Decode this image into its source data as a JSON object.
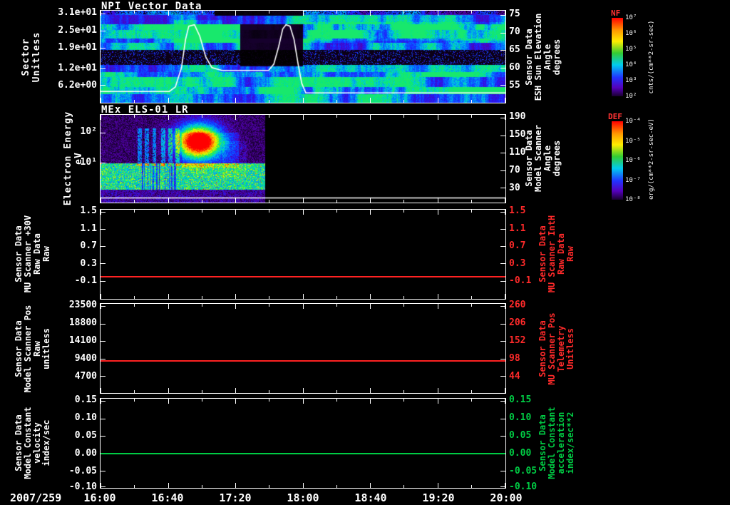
{
  "x_axis": {
    "date_label": "2007/259",
    "ticks": [
      "16:00",
      "16:40",
      "17:20",
      "18:00",
      "18:40",
      "19:20",
      "20:00"
    ]
  },
  "colorbars": [
    {
      "name": "NF",
      "name_color": "#ff3333",
      "units": "cnts/(cm**2-sr-sec)",
      "ticks": [
        "10⁷",
        "10⁶",
        "10⁵",
        "10⁴",
        "10³",
        "10²"
      ],
      "gradient": [
        "#ff0000",
        "#ff9900 16%",
        "#ffee00 30%",
        "#33cc33 45%",
        "#00ccee 60%",
        "#2233ff 76%",
        "#5500bb 89%",
        "#1a0030 100%"
      ]
    },
    {
      "name": "DEF",
      "name_color": "#ff3333",
      "units": "erg/(cm**2-sr-sec-eV)",
      "ticks": [
        "10⁻⁴",
        "10⁻⁵",
        "10⁻⁶",
        "10⁻⁷",
        "10⁻⁸"
      ],
      "gradient": [
        "#ff0000",
        "#ff9900 16%",
        "#ffee00 30%",
        "#33cc33 45%",
        "#00ccee 60%",
        "#2233ff 76%",
        "#5500bb 89%",
        "#1a0030 100%"
      ]
    }
  ],
  "chart_data": [
    {
      "type": "heatmap",
      "title": "NPI Vector Data",
      "x_range": [
        "16:00",
        "20:00"
      ],
      "left_axis": {
        "label": "Sector\nUnitless",
        "color": "#ffffff",
        "ticks": [
          {
            "label": "3.1e+01",
            "f": 0.031
          },
          {
            "label": "2.5e+01",
            "f": 0.219
          },
          {
            "label": "1.9e+01",
            "f": 0.406
          },
          {
            "label": "1.2e+01",
            "f": 0.625
          },
          {
            "label": "6.2e+00",
            "f": 0.806
          }
        ]
      },
      "right_axis": {
        "label": "Sensor Data\nESH Sun Elevation\nAngle\ndegrees",
        "color": "#ffffff",
        "ticks": [
          {
            "label": "75",
            "f": 0.046
          },
          {
            "label": "70",
            "f": 0.237
          },
          {
            "label": "65",
            "f": 0.427
          },
          {
            "label": "60",
            "f": 0.618
          },
          {
            "label": "55",
            "f": 0.809
          }
        ]
      },
      "colorbar": "NF",
      "overlay_line": {
        "name": "sun-elevation-angle",
        "units": "degrees",
        "color": "#ffffff",
        "points": [
          [
            0.0,
            53.2
          ],
          [
            0.17,
            53.2
          ],
          [
            0.185,
            54.5
          ],
          [
            0.2,
            60.0
          ],
          [
            0.21,
            68.0
          ],
          [
            0.218,
            71.8
          ],
          [
            0.232,
            72.2
          ],
          [
            0.245,
            69.0
          ],
          [
            0.26,
            63.0
          ],
          [
            0.275,
            60.0
          ],
          [
            0.3,
            59.2
          ],
          [
            0.415,
            59.2
          ],
          [
            0.428,
            61.0
          ],
          [
            0.44,
            66.0
          ],
          [
            0.45,
            71.0
          ],
          [
            0.458,
            72.2
          ],
          [
            0.468,
            71.8
          ],
          [
            0.478,
            68.0
          ],
          [
            0.488,
            61.0
          ],
          [
            0.497,
            55.5
          ],
          [
            0.507,
            52.8
          ],
          [
            1.0,
            52.8
          ]
        ]
      },
      "notes": "blue/cyan horizontally banded neutral-particle count spectrogram; black band near sector 12 with purple noise; dark dropout ~17:20-18:00 in upper sectors; white sun-elevation curve overlaid"
    },
    {
      "type": "heatmap",
      "title": "MEx ELS-01 LR",
      "left_axis": {
        "label": "Electron Energy\neV",
        "color": "#ffffff",
        "ticks": [
          {
            "label": "10²",
            "f": 0.2
          },
          {
            "label": "10¹",
            "f": 0.544
          }
        ]
      },
      "right_axis": {
        "label": "Sensor Data\nModel Scanner\nAngle\ndegrees",
        "color": "#ffffff",
        "ticks": [
          {
            "label": "190",
            "f": 0.032
          },
          {
            "label": "150",
            "f": 0.232
          },
          {
            "label": "110",
            "f": 0.432
          },
          {
            "label": "70",
            "f": 0.632
          },
          {
            "label": "30",
            "f": 0.832
          }
        ]
      },
      "colorbar": "DEF",
      "data_end_frac": 0.405,
      "overlay_line": {
        "name": "scanner-angle-trace",
        "color": "#ffffff",
        "f": 0.945
      },
      "notes": "electron energy flux spectrogram 16:00-~17:37 only; intense red burst ~17:00-17:15 at 20-100 eV with yellow/green halo; bright green low-energy band; vertical green stripes 16:15-16:45; black (no data) after ~17:37"
    },
    {
      "type": "line",
      "left_axis": {
        "label": "Sensor Data\nMU Scanner +30V\nRaw Data\nRaw",
        "color": "#ffffff",
        "ticks": [
          {
            "label": "1.5",
            "f": 0.024
          },
          {
            "label": "1.1",
            "f": 0.217
          },
          {
            "label": "0.7",
            "f": 0.41
          },
          {
            "label": "0.3",
            "f": 0.603
          },
          {
            "label": "-0.1",
            "f": 0.796
          }
        ]
      },
      "right_axis": {
        "label": "Sensor Data\nMU Scanner IntH\nRaw Data\nRaw",
        "color": "#ff2a2a",
        "ticks": [
          {
            "label": "1.5",
            "f": 0.024
          },
          {
            "label": "1.1",
            "f": 0.217
          },
          {
            "label": "0.7",
            "f": 0.41
          },
          {
            "label": "0.3",
            "f": 0.603
          },
          {
            "label": "-0.1",
            "f": 0.796
          }
        ]
      },
      "series": [
        {
          "name": "MU Scanner +30V Raw",
          "color": "#ff2222",
          "constant_value": 0.0,
          "f": 0.748
        }
      ]
    },
    {
      "type": "line",
      "left_axis": {
        "label": "Sensor Data\nModel Scanner Pos\nRaw\nunitless",
        "color": "#ffffff",
        "ticks": [
          {
            "label": "23500",
            "f": 0.024
          },
          {
            "label": "18800",
            "f": 0.22
          },
          {
            "label": "14100",
            "f": 0.417
          },
          {
            "label": "9400",
            "f": 0.614
          },
          {
            "label": "4700",
            "f": 0.811
          }
        ]
      },
      "right_axis": {
        "label": "Sensor Data\nMU Scanner Pos\nTelemetry\nUnitless",
        "color": "#ff2a2a",
        "ticks": [
          {
            "label": "260",
            "f": 0.024
          },
          {
            "label": "206",
            "f": 0.22
          },
          {
            "label": "152",
            "f": 0.417
          },
          {
            "label": "98",
            "f": 0.614
          },
          {
            "label": "44",
            "f": 0.811
          }
        ]
      },
      "series": [
        {
          "name": "Model Scanner Pos Raw",
          "color": "#ff2222",
          "constant_value": 8800,
          "value_right_axis": 92,
          "f": 0.64
        }
      ]
    },
    {
      "type": "line",
      "left_axis": {
        "label": "Sensor Data\nModel Constant\nvelocity\nindex/sec",
        "color": "#ffffff",
        "ticks": [
          {
            "label": "0.15",
            "f": 0.024
          },
          {
            "label": "0.10",
            "f": 0.22
          },
          {
            "label": "0.05",
            "f": 0.417
          },
          {
            "label": "0.00",
            "f": 0.614
          },
          {
            "label": "-0.05",
            "f": 0.811
          },
          {
            "label": "-0.10",
            "f": 0.985
          }
        ]
      },
      "right_axis": {
        "label": "Sensor Data\nModel Constant\nacceleration\nindex/sec**2",
        "color": "#00cc44",
        "ticks": [
          {
            "label": "0.15",
            "f": 0.024
          },
          {
            "label": "0.10",
            "f": 0.22
          },
          {
            "label": "0.05",
            "f": 0.417
          },
          {
            "label": "0.00",
            "f": 0.614
          },
          {
            "label": "-0.05",
            "f": 0.811
          },
          {
            "label": "-0.10",
            "f": 0.985
          }
        ]
      },
      "series": [
        {
          "name": "Model Constant velocity",
          "color": "#00cc44",
          "constant_value": 0.0,
          "f": 0.614
        }
      ]
    }
  ]
}
